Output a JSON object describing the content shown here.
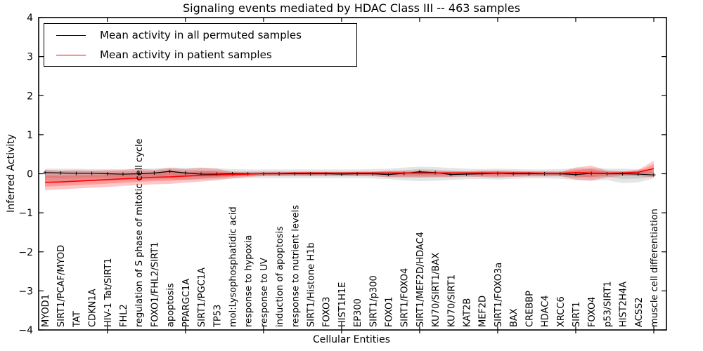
{
  "chart_data": {
    "type": "line",
    "title": "Signaling events mediated by HDAC Class III -- 463 samples",
    "xlabel": "Cellular Entities",
    "ylabel": "Inferred Activity",
    "ylim": [
      -4,
      4
    ],
    "yticks": [
      -4,
      -3,
      -2,
      -1,
      0,
      1,
      2,
      3,
      4
    ],
    "xtick_every": 5,
    "grid": false,
    "legend_position": "upper left",
    "categories": [
      "MYOD1",
      "SIRT1/PCAF/MYOD",
      "TAT",
      "CDKN1A",
      "HIV-1 Tat/SIRT1",
      "FHL2",
      "regulation of S phase of mitotic cell cycle",
      "FOXO1/FHL2/SIRT1",
      "apoptosis",
      "PPARGC1A",
      "SIRT1/PGC1A",
      "TP53",
      "mol:Lysophosphatidic acid",
      "response to hypoxia",
      "response to UV",
      "induction of apoptosis",
      "response to nutrient levels",
      "SIRT1/Histone H1b",
      "FOXO3",
      "HIST1H1E",
      "EP300",
      "SIRT1/p300",
      "FOXO1",
      "SIRT1/FOXO4",
      "SIRT1/MEF2D/HDAC4",
      "KU70/SIRT1/BAX",
      "KU70/SIRT1",
      "KAT2B",
      "MEF2D",
      "SIRT1/FOXO3a",
      "BAX",
      "CREBBP",
      "HDAC4",
      "XRCC6",
      "SIRT1",
      "FOXO4",
      "p53/SIRT1",
      "HIST2H4A",
      "ACSS2",
      "muscle cell differentiation"
    ],
    "series": [
      {
        "name": "Mean activity in all permuted samples",
        "color": "#000000",
        "band_color": "rgba(0,0,0,0.10)",
        "marker": "+",
        "values": [
          0.03,
          0.02,
          0.01,
          0.01,
          0.0,
          -0.01,
          0.0,
          0.02,
          0.06,
          0.02,
          -0.01,
          -0.01,
          0.0,
          0.0,
          0.0,
          0.0,
          0.0,
          0.0,
          0.0,
          -0.01,
          0.0,
          0.0,
          -0.02,
          0.01,
          0.05,
          0.03,
          -0.02,
          -0.01,
          0.0,
          0.01,
          0.0,
          0.0,
          0.0,
          0.0,
          -0.02,
          0.01,
          0.0,
          0.0,
          -0.01,
          -0.03
        ],
        "band_upper": [
          0.13,
          0.13,
          0.13,
          0.12,
          0.12,
          0.12,
          0.12,
          0.14,
          0.16,
          0.15,
          0.16,
          0.14,
          0.12,
          0.11,
          0.11,
          0.11,
          0.11,
          0.11,
          0.11,
          0.11,
          0.11,
          0.12,
          0.13,
          0.16,
          0.18,
          0.17,
          0.15,
          0.13,
          0.12,
          0.13,
          0.12,
          0.11,
          0.11,
          0.12,
          0.14,
          0.15,
          0.13,
          0.13,
          0.12,
          0.11
        ],
        "band_lower": [
          -0.22,
          -0.23,
          -0.21,
          -0.19,
          -0.18,
          -0.17,
          -0.16,
          -0.15,
          -0.14,
          -0.16,
          -0.15,
          -0.14,
          -0.12,
          -0.12,
          -0.11,
          -0.11,
          -0.11,
          -0.11,
          -0.11,
          -0.11,
          -0.11,
          -0.12,
          -0.14,
          -0.17,
          -0.19,
          -0.18,
          -0.16,
          -0.14,
          -0.13,
          -0.15,
          -0.13,
          -0.12,
          -0.12,
          -0.13,
          -0.16,
          -0.17,
          -0.16,
          -0.24,
          -0.22,
          -0.12
        ]
      },
      {
        "name": "Mean activity in patient samples",
        "color": "#ff0000",
        "band_color": "rgba(255,0,0,0.22)",
        "marker": "none",
        "values": [
          -0.22,
          -0.21,
          -0.19,
          -0.17,
          -0.15,
          -0.13,
          -0.11,
          -0.09,
          -0.08,
          -0.06,
          -0.04,
          -0.03,
          -0.02,
          -0.01,
          0.01,
          0.01,
          0.02,
          0.02,
          0.02,
          0.02,
          0.02,
          0.02,
          0.02,
          0.02,
          0.02,
          0.02,
          0.02,
          0.02,
          0.02,
          0.02,
          0.02,
          0.02,
          0.01,
          0.01,
          0.03,
          0.02,
          0.01,
          0.02,
          0.04,
          0.13
        ],
        "band_upper": [
          0.1,
          0.08,
          0.09,
          0.08,
          0.09,
          0.1,
          0.13,
          0.1,
          0.15,
          0.12,
          0.15,
          0.13,
          0.05,
          0.04,
          0.04,
          0.05,
          0.04,
          0.05,
          0.04,
          0.04,
          0.05,
          0.05,
          0.08,
          0.07,
          0.08,
          0.07,
          0.07,
          0.06,
          0.08,
          0.08,
          0.07,
          0.06,
          0.06,
          0.05,
          0.16,
          0.21,
          0.08,
          0.06,
          0.1,
          0.33
        ],
        "band_lower": [
          -0.42,
          -0.4,
          -0.38,
          -0.36,
          -0.34,
          -0.31,
          -0.29,
          -0.27,
          -0.26,
          -0.23,
          -0.2,
          -0.17,
          -0.12,
          -0.08,
          -0.06,
          -0.06,
          -0.05,
          -0.06,
          -0.05,
          -0.05,
          -0.06,
          -0.06,
          -0.09,
          -0.09,
          -0.1,
          -0.09,
          -0.08,
          -0.07,
          -0.09,
          -0.1,
          -0.08,
          -0.07,
          -0.07,
          -0.06,
          -0.15,
          -0.18,
          -0.09,
          -0.06,
          -0.06,
          -0.09
        ]
      }
    ]
  }
}
